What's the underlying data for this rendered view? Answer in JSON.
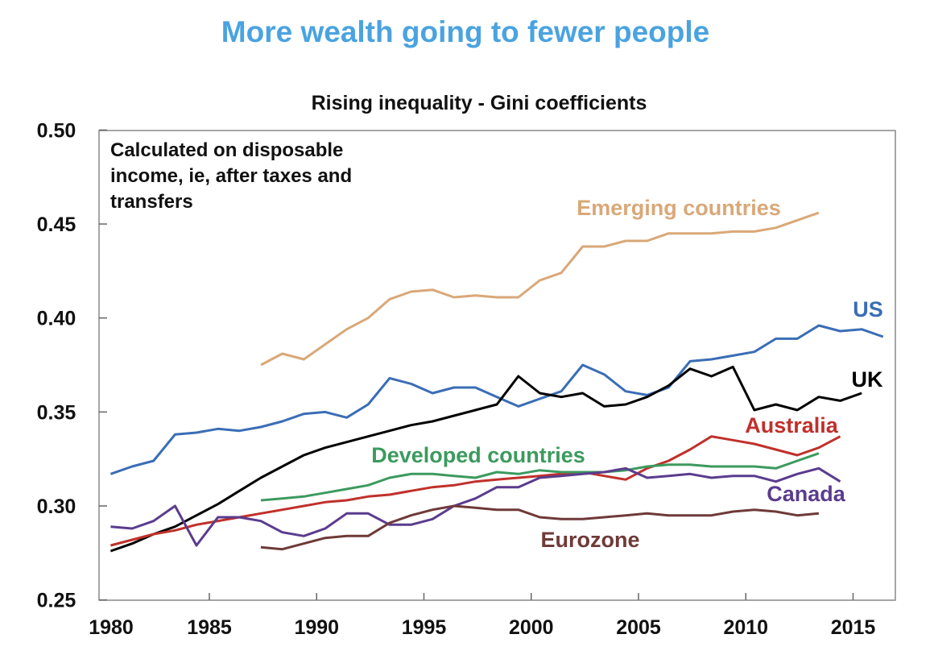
{
  "header": {
    "title": "More wealth going to fewer people",
    "title_color": "#4aa3e0"
  },
  "chart_data": {
    "type": "line",
    "title": "Rising inequality - Gini coefficients",
    "annotation": [
      "Calculated on disposable",
      "income, ie, after taxes and",
      "transfers"
    ],
    "xlabel": "",
    "ylabel": "",
    "xlim": [
      1980,
      2017
    ],
    "ylim": [
      0.25,
      0.5
    ],
    "xticks": [
      1980,
      1985,
      1990,
      1995,
      2000,
      2005,
      2010,
      2015
    ],
    "yticks": [
      "0.25",
      "0.30",
      "0.35",
      "0.40",
      "0.45",
      "0.50"
    ],
    "grid": false,
    "legend": "inline labels",
    "series": [
      {
        "name": "Emerging countries",
        "color": "#d9a878",
        "start": 1987,
        "values": [
          0.375,
          0.381,
          0.378,
          0.386,
          0.394,
          0.4,
          0.41,
          0.414,
          0.415,
          0.411,
          0.412,
          0.411,
          0.411,
          0.42,
          0.424,
          0.438,
          0.438,
          0.441,
          0.441,
          0.445,
          0.445,
          0.445,
          0.446,
          0.446,
          0.448,
          0.452,
          0.456
        ]
      },
      {
        "name": "US",
        "color": "#3a6db5",
        "start": 1980,
        "values": [
          0.317,
          0.321,
          0.324,
          0.338,
          0.339,
          0.341,
          0.34,
          0.342,
          0.345,
          0.349,
          0.35,
          0.347,
          0.354,
          0.368,
          0.365,
          0.36,
          0.363,
          0.363,
          0.358,
          0.353,
          0.357,
          0.361,
          0.375,
          0.37,
          0.361,
          0.359,
          0.363,
          0.377,
          0.378,
          0.38,
          0.382,
          0.389,
          0.389,
          0.396,
          0.393,
          0.394,
          0.39
        ]
      },
      {
        "name": "UK",
        "color": "#000000",
        "start": 1980,
        "values": [
          0.276,
          0.28,
          0.285,
          0.289,
          0.295,
          0.301,
          0.308,
          0.315,
          0.321,
          0.327,
          0.331,
          0.334,
          0.337,
          0.34,
          0.343,
          0.345,
          0.348,
          0.351,
          0.354,
          0.369,
          0.36,
          0.358,
          0.36,
          0.353,
          0.354,
          0.358,
          0.364,
          0.373,
          0.369,
          0.374,
          0.351,
          0.354,
          0.351,
          0.358,
          0.356,
          0.36
        ]
      },
      {
        "name": "Australia",
        "color": "#c0302b",
        "start": 1980,
        "values": [
          0.279,
          0.282,
          0.285,
          0.287,
          0.29,
          0.292,
          0.294,
          0.296,
          0.298,
          0.3,
          0.302,
          0.303,
          0.305,
          0.306,
          0.308,
          0.31,
          0.311,
          0.313,
          0.314,
          0.315,
          0.316,
          0.317,
          0.318,
          0.316,
          0.314,
          0.32,
          0.324,
          0.33,
          0.337,
          0.335,
          0.333,
          0.33,
          0.327,
          0.331,
          0.337
        ]
      },
      {
        "name": "Developed countries",
        "color": "#3c9a5f",
        "start": 1987,
        "values": [
          0.303,
          0.304,
          0.305,
          0.307,
          0.309,
          0.311,
          0.315,
          0.317,
          0.317,
          0.316,
          0.315,
          0.318,
          0.317,
          0.319,
          0.318,
          0.318,
          0.318,
          0.319,
          0.321,
          0.322,
          0.322,
          0.321,
          0.321,
          0.321,
          0.32,
          0.324,
          0.328
        ]
      },
      {
        "name": "Canada",
        "color": "#5a3c8e",
        "start": 1980,
        "values": [
          0.289,
          0.288,
          0.292,
          0.3,
          0.279,
          0.294,
          0.294,
          0.292,
          0.286,
          0.284,
          0.288,
          0.296,
          0.296,
          0.29,
          0.29,
          0.293,
          0.3,
          0.304,
          0.31,
          0.31,
          0.315,
          0.316,
          0.317,
          0.318,
          0.32,
          0.315,
          0.316,
          0.317,
          0.315,
          0.316,
          0.316,
          0.313,
          0.317,
          0.32,
          0.313
        ]
      },
      {
        "name": "Eurozone",
        "color": "#6e3a38",
        "start": 1987,
        "values": [
          0.278,
          0.277,
          0.28,
          0.283,
          0.284,
          0.284,
          0.291,
          0.295,
          0.298,
          0.3,
          0.299,
          0.298,
          0.298,
          0.294,
          0.293,
          0.293,
          0.294,
          0.295,
          0.296,
          0.295,
          0.295,
          0.295,
          0.297,
          0.298,
          0.297,
          0.295,
          0.296
        ]
      }
    ]
  }
}
